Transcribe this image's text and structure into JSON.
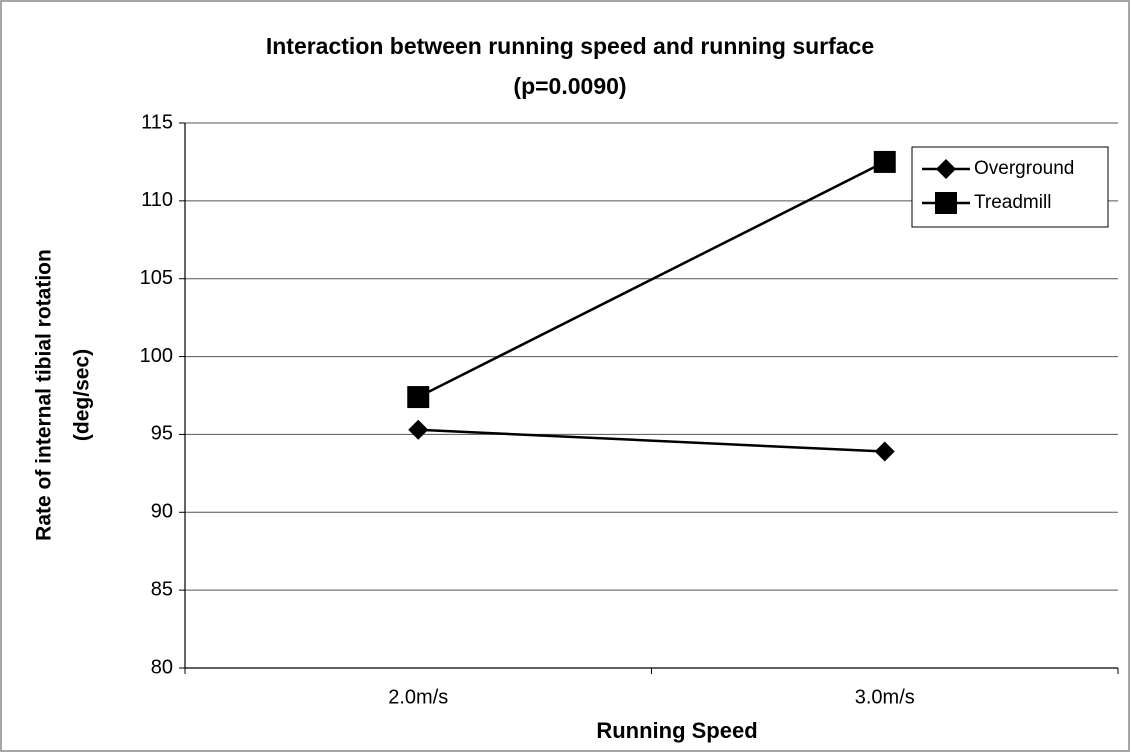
{
  "chart_data": {
    "type": "line",
    "title": "Interaction between running speed and running surface",
    "subtitle": "(p=0.0090)",
    "x_label": "Running Speed",
    "y_label": [
      "Rate of internal tibial rotation",
      "(deg/sec)"
    ],
    "categories": [
      "2.0m/s",
      "3.0m/s"
    ],
    "series": [
      {
        "name": "Overground",
        "color": "#000000",
        "marker": "diamond",
        "values": [
          95.3,
          93.9
        ]
      },
      {
        "name": "Treadmill",
        "color": "#000000",
        "marker": "square",
        "values": [
          97.4,
          112.5
        ]
      }
    ],
    "ylim": [
      80,
      115
    ],
    "yticks": [
      80,
      85,
      90,
      95,
      100,
      105,
      110,
      115
    ],
    "grid": true,
    "legend": "upper right"
  }
}
